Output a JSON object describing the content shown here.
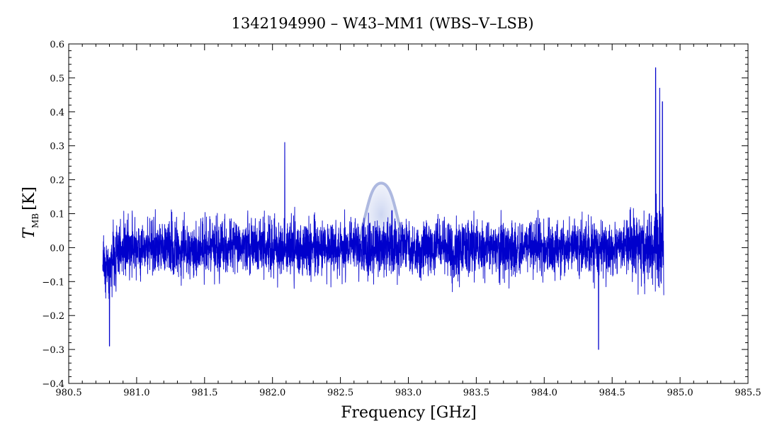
{
  "chart_data": {
    "type": "line",
    "title": "1342194990 – W43–MM1 (WBS–V–LSB)",
    "xlabel": "Frequency [GHz]",
    "ylabel_main": "T",
    "ylabel_sub": "MB",
    "ylabel_unit": "[K]",
    "xlim": [
      980.5,
      985.5
    ],
    "ylim": [
      -0.4,
      0.6
    ],
    "x_ticks": [
      980.5,
      981.0,
      981.5,
      982.0,
      982.5,
      983.0,
      983.5,
      984.0,
      984.5,
      985.0,
      985.5
    ],
    "x_tick_labels": [
      "980.5",
      "981.0",
      "981.5",
      "982.0",
      "982.5",
      "983.0",
      "983.5",
      "984.0",
      "984.5",
      "985.0",
      "985.5"
    ],
    "y_ticks": [
      -0.4,
      -0.3,
      -0.2,
      -0.1,
      0.0,
      0.1,
      0.2,
      0.3,
      0.4,
      0.5,
      0.6
    ],
    "y_tick_labels": [
      "−0.4",
      "−0.3",
      "−0.2",
      "−0.1",
      "0.0",
      "0.1",
      "0.2",
      "0.3",
      "0.4",
      "0.5",
      "0.6"
    ],
    "grid": false,
    "series": [
      {
        "color": "#0000cc",
        "x_range": [
          980.75,
          984.88
        ],
        "noise_rms": 0.075,
        "features": [
          {
            "x": 980.8,
            "y": -0.29
          },
          {
            "x": 982.09,
            "y": 0.31
          },
          {
            "x": 984.4,
            "y": -0.3
          },
          {
            "x": 984.82,
            "y": 0.53
          },
          {
            "x": 984.85,
            "y": 0.47
          },
          {
            "x": 984.87,
            "y": 0.43
          }
        ]
      }
    ],
    "highlight_line": {
      "color": "#9aa8d8",
      "center": 982.8,
      "peak": 0.19,
      "half_width": 0.16
    }
  }
}
